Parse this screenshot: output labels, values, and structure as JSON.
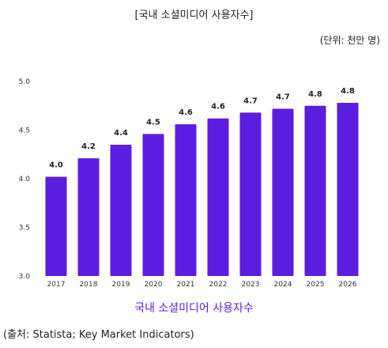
{
  "chart_data": {
    "type": "bar",
    "title": "[국내 소셜미디어 사용자수]",
    "unit_note": "(단위: 천만 명)",
    "caption": "국내 소셜미디어 사용자수",
    "source": "(출처: Statista; Key Market Indicators)",
    "categories": [
      "2017",
      "2018",
      "2019",
      "2020",
      "2021",
      "2022",
      "2023",
      "2024",
      "2025",
      "2026"
    ],
    "values": [
      4.02,
      4.21,
      4.35,
      4.46,
      4.56,
      4.62,
      4.68,
      4.72,
      4.75,
      4.78
    ],
    "data_labels": [
      "4.0",
      "4.2",
      "4.4",
      "4.5",
      "4.6",
      "4.6",
      "4.7",
      "4.7",
      "4.8",
      "4.8"
    ],
    "y_ticks": [
      "3.0",
      "3.5",
      "4.0",
      "4.5",
      "5.0"
    ],
    "ylim": [
      3.0,
      5.0
    ],
    "grid": false,
    "legend": "none",
    "bar_color": "#5b1ee0",
    "caption_color": "#5b1ee0"
  }
}
